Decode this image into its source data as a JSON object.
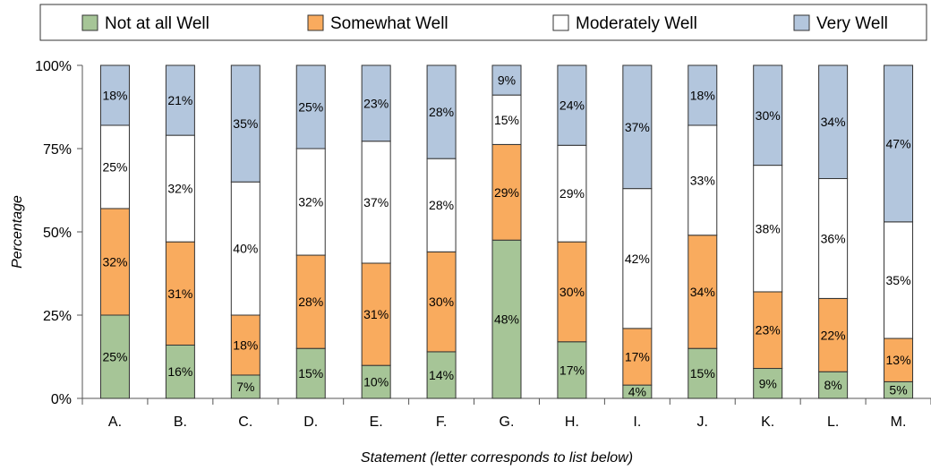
{
  "chart_data": {
    "type": "bar",
    "stacked": true,
    "categories": [
      "A.",
      "B.",
      "C.",
      "D.",
      "E.",
      "F.",
      "G.",
      "H.",
      "I.",
      "J.",
      "K.",
      "L.",
      "M."
    ],
    "series": [
      {
        "name": "Not at all Well",
        "color": "#a6c597",
        "values": [
          25,
          16,
          7,
          15,
          10,
          14,
          48,
          17,
          4,
          15,
          9,
          8,
          5
        ]
      },
      {
        "name": "Somewhat Well",
        "color": "#f9ab5e",
        "values": [
          32,
          31,
          18,
          28,
          31,
          30,
          29,
          30,
          17,
          34,
          23,
          22,
          13
        ]
      },
      {
        "name": "Moderately Well",
        "color": "#ffffff",
        "values": [
          25,
          32,
          40,
          32,
          37,
          28,
          15,
          29,
          42,
          33,
          38,
          36,
          35
        ]
      },
      {
        "name": "Very Well",
        "color": "#b3c6dd",
        "values": [
          18,
          21,
          35,
          25,
          23,
          28,
          9,
          24,
          37,
          18,
          30,
          34,
          47
        ]
      }
    ],
    "y_ticks": [
      "0%",
      "25%",
      "50%",
      "75%",
      "100%"
    ],
    "ylim": [
      0,
      100
    ],
    "ylabel": "Percentage",
    "xlabel": "Statement (letter corresponds to list below)",
    "legend_position": "top",
    "grid": false
  }
}
